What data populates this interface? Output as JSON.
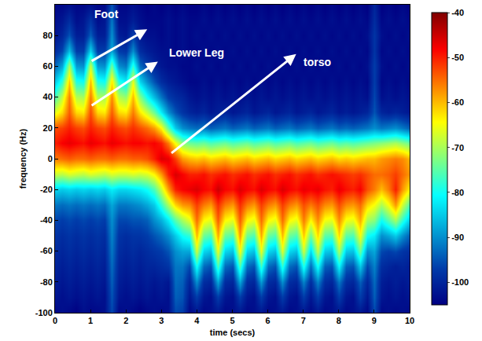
{
  "chart_data": {
    "type": "heatmap",
    "xlabel": "time (secs)",
    "ylabel": "frequency (Hz)",
    "xlim": [
      0,
      10
    ],
    "xticks": [
      0,
      1,
      2,
      3,
      4,
      5,
      6,
      7,
      8,
      9,
      10
    ],
    "ylim": [
      -100,
      100
    ],
    "yticks": [
      -100,
      -80,
      -60,
      -40,
      -20,
      0,
      20,
      40,
      60,
      80
    ],
    "grid": false,
    "zlim": [
      -105,
      -40
    ],
    "zticks": [
      -40,
      -50,
      -60,
      -70,
      -80,
      -90,
      -100
    ],
    "x": [
      0,
      0.2,
      0.4,
      0.6,
      0.8,
      1,
      1.2,
      1.4,
      1.6,
      1.8,
      2,
      2.2,
      2.4,
      2.6,
      2.8,
      3,
      3.2,
      3.4,
      3.6,
      3.8,
      4,
      4.2,
      4.4,
      4.6,
      4.8,
      5,
      5.2,
      5.4,
      5.6,
      5.8,
      6,
      6.2,
      6.4,
      6.6,
      6.8,
      7,
      7.2,
      7.4,
      7.6,
      7.8,
      8,
      8.2,
      8.4,
      8.6,
      8.8,
      9,
      9.2,
      9.4,
      9.6,
      9.8,
      10
    ],
    "y": [
      -100,
      -90,
      -80,
      -70,
      -60,
      -50,
      -40,
      -30,
      -20,
      -10,
      0,
      10,
      20,
      30,
      40,
      50,
      60,
      70,
      80,
      90,
      100
    ],
    "z": [
      [
        -104,
        -103,
        -104,
        -105,
        -103,
        -104,
        -104,
        -103,
        -96,
        -104,
        -103,
        -104,
        -105,
        -104,
        -103,
        -104,
        -103,
        -96,
        -97,
        -104,
        -102,
        -104,
        -103,
        -102,
        -104,
        -103,
        -102,
        -104,
        -103,
        -102,
        -104,
        -103,
        -102,
        -104,
        -103,
        -102,
        -104,
        -102,
        -104,
        -103,
        -102,
        -104,
        -103,
        -102,
        -104,
        -96,
        -104,
        -103,
        -104,
        -103,
        -104
      ],
      [
        -102,
        -103,
        -102,
        -103,
        -102,
        -103,
        -102,
        -103,
        -95,
        -102,
        -103,
        -102,
        -103,
        -102,
        -103,
        -102,
        -103,
        -94,
        -95,
        -102,
        -97,
        -102,
        -103,
        -97,
        -102,
        -103,
        -97,
        -102,
        -103,
        -97,
        -102,
        -103,
        -97,
        -102,
        -103,
        -97,
        -102,
        -97,
        -102,
        -103,
        -97,
        -102,
        -103,
        -97,
        -102,
        -94,
        -102,
        -103,
        -102,
        -103,
        -102
      ],
      [
        -101,
        -102,
        -101,
        -102,
        -101,
        -102,
        -101,
        -102,
        -94,
        -101,
        -102,
        -101,
        -102,
        -101,
        -102,
        -101,
        -102,
        -93,
        -94,
        -100,
        -90,
        -99,
        -100,
        -88,
        -99,
        -100,
        -88,
        -99,
        -100,
        -89,
        -99,
        -100,
        -90,
        -99,
        -100,
        -91,
        -99,
        -91,
        -99,
        -100,
        -92,
        -99,
        -100,
        -94,
        -100,
        -93,
        -101,
        -102,
        -101,
        -102,
        -101
      ],
      [
        -100,
        -101,
        -100,
        -101,
        -100,
        -101,
        -100,
        -101,
        -93,
        -100,
        -101,
        -100,
        -101,
        -100,
        -100,
        -99,
        -98,
        -92,
        -92,
        -96,
        -80,
        -93,
        -95,
        -76,
        -93,
        -95,
        -76,
        -93,
        -95,
        -77,
        -93,
        -95,
        -78,
        -93,
        -95,
        -79,
        -93,
        -80,
        -94,
        -95,
        -81,
        -94,
        -95,
        -85,
        -96,
        -91,
        -99,
        -100,
        -101,
        -100,
        -101
      ],
      [
        -99,
        -100,
        -99,
        -100,
        -99,
        -100,
        -99,
        -100,
        -92,
        -99,
        -100,
        -99,
        -100,
        -99,
        -98,
        -97,
        -95,
        -90,
        -88,
        -88,
        -68,
        -84,
        -86,
        -66,
        -84,
        -86,
        -65,
        -84,
        -86,
        -66,
        -84,
        -86,
        -67,
        -84,
        -86,
        -68,
        -84,
        -69,
        -85,
        -86,
        -70,
        -85,
        -86,
        -74,
        -90,
        -88,
        -96,
        -97,
        -96,
        -98,
        -99
      ],
      [
        -98,
        -99,
        -98,
        -99,
        -98,
        -99,
        -98,
        -99,
        -91,
        -98,
        -99,
        -98,
        -98,
        -97,
        -95,
        -93,
        -90,
        -85,
        -80,
        -78,
        -60,
        -74,
        -76,
        -59,
        -74,
        -76,
        -58,
        -74,
        -76,
        -59,
        -74,
        -76,
        -60,
        -74,
        -76,
        -61,
        -74,
        -62,
        -75,
        -76,
        -62,
        -75,
        -76,
        -65,
        -80,
        -82,
        -90,
        -88,
        -85,
        -90,
        -94
      ],
      [
        -96,
        -97,
        -96,
        -97,
        -96,
        -97,
        -96,
        -97,
        -90,
        -96,
        -96,
        -95,
        -95,
        -94,
        -90,
        -87,
        -82,
        -75,
        -70,
        -66,
        -55,
        -64,
        -66,
        -54,
        -64,
        -66,
        -54,
        -64,
        -66,
        -55,
        -64,
        -66,
        -55,
        -64,
        -66,
        -56,
        -64,
        -57,
        -65,
        -66,
        -57,
        -65,
        -66,
        -59,
        -70,
        -72,
        -80,
        -75,
        -70,
        -78,
        -85
      ],
      [
        -92,
        -93,
        -92,
        -93,
        -92,
        -93,
        -92,
        -93,
        -88,
        -92,
        -92,
        -91,
        -90,
        -88,
        -85,
        -78,
        -70,
        -62,
        -58,
        -57,
        -52,
        -56,
        -58,
        -51,
        -56,
        -58,
        -51,
        -56,
        -58,
        -52,
        -56,
        -58,
        -52,
        -56,
        -58,
        -53,
        -56,
        -53,
        -57,
        -58,
        -53,
        -57,
        -58,
        -55,
        -62,
        -65,
        -70,
        -65,
        -58,
        -68,
        -76
      ],
      [
        -84,
        -85,
        -84,
        -85,
        -84,
        -85,
        -84,
        -85,
        -82,
        -84,
        -84,
        -83,
        -82,
        -80,
        -76,
        -68,
        -58,
        -50,
        -48,
        -47,
        -46,
        -48,
        -49,
        -45,
        -48,
        -49,
        -46,
        -48,
        -49,
        -46,
        -48,
        -49,
        -46,
        -48,
        -49,
        -47,
        -48,
        -47,
        -49,
        -50,
        -47,
        -49,
        -50,
        -48,
        -53,
        -56,
        -60,
        -56,
        -50,
        -58,
        -64
      ],
      [
        -68,
        -69,
        -67,
        -68,
        -69,
        -67,
        -68,
        -69,
        -67,
        -68,
        -68,
        -67,
        -68,
        -67,
        -64,
        -58,
        -50,
        -46,
        -48,
        -50,
        -50,
        -49,
        -51,
        -50,
        -49,
        -51,
        -50,
        -49,
        -51,
        -50,
        -49,
        -51,
        -50,
        -49,
        -51,
        -50,
        -49,
        -51,
        -50,
        -49,
        -50,
        -51,
        -52,
        -51,
        -53,
        -55,
        -55,
        -54,
        -52,
        -55,
        -58
      ],
      [
        -56,
        -55,
        -54,
        -55,
        -55,
        -54,
        -55,
        -55,
        -54,
        -55,
        -55,
        -54,
        -54,
        -53,
        -50,
        -46,
        -47,
        -52,
        -58,
        -60,
        -61,
        -60,
        -62,
        -61,
        -60,
        -62,
        -61,
        -60,
        -62,
        -61,
        -60,
        -62,
        -61,
        -60,
        -62,
        -61,
        -60,
        -62,
        -61,
        -60,
        -62,
        -61,
        -62,
        -61,
        -60,
        -60,
        -58,
        -57,
        -56,
        -57,
        -60
      ],
      [
        -50,
        -48,
        -47,
        -48,
        -49,
        -47,
        -48,
        -49,
        -47,
        -48,
        -49,
        -48,
        -48,
        -49,
        -48,
        -50,
        -56,
        -65,
        -72,
        -74,
        -75,
        -74,
        -76,
        -75,
        -74,
        -76,
        -75,
        -74,
        -76,
        -75,
        -74,
        -76,
        -75,
        -74,
        -76,
        -75,
        -74,
        -76,
        -75,
        -74,
        -76,
        -75,
        -76,
        -75,
        -74,
        -73,
        -72,
        -71,
        -70,
        -72,
        -74
      ],
      [
        -53,
        -52,
        -50,
        -52,
        -53,
        -50,
        -52,
        -53,
        -50,
        -52,
        -53,
        -51,
        -53,
        -55,
        -58,
        -64,
        -75,
        -85,
        -90,
        -92,
        -93,
        -92,
        -94,
        -93,
        -92,
        -94,
        -93,
        -92,
        -94,
        -93,
        -92,
        -94,
        -93,
        -92,
        -94,
        -93,
        -92,
        -94,
        -93,
        -92,
        -94,
        -93,
        -94,
        -93,
        -92,
        -90,
        -92,
        -91,
        -90,
        -92,
        -94
      ],
      [
        -66,
        -62,
        -54,
        -62,
        -63,
        -53,
        -62,
        -63,
        -54,
        -62,
        -63,
        -56,
        -63,
        -68,
        -74,
        -82,
        -90,
        -95,
        -98,
        -100,
        -101,
        -100,
        -102,
        -101,
        -100,
        -102,
        -101,
        -100,
        -102,
        -101,
        -100,
        -102,
        -101,
        -100,
        -102,
        -101,
        -100,
        -102,
        -101,
        -100,
        -102,
        -101,
        -102,
        -101,
        -100,
        -95,
        -100,
        -101,
        -100,
        -101,
        -102
      ],
      [
        -76,
        -68,
        -56,
        -69,
        -70,
        -56,
        -69,
        -70,
        -57,
        -69,
        -71,
        -60,
        -72,
        -80,
        -86,
        -92,
        -97,
        -99,
        -100,
        -102,
        -103,
        -102,
        -103,
        -102,
        -103,
        -102,
        -103,
        -102,
        -103,
        -102,
        -103,
        -102,
        -103,
        -102,
        -103,
        -102,
        -103,
        -102,
        -103,
        -102,
        -103,
        -102,
        -103,
        -102,
        -103,
        -96,
        -103,
        -102,
        -103,
        -102,
        -103
      ],
      [
        -85,
        -78,
        -61,
        -79,
        -80,
        -60,
        -79,
        -80,
        -63,
        -79,
        -82,
        -66,
        -84,
        -90,
        -95,
        -99,
        -101,
        -102,
        -103,
        -104,
        -104,
        -103,
        -104,
        -103,
        -104,
        -103,
        -104,
        -103,
        -104,
        -103,
        -104,
        -103,
        -104,
        -103,
        -104,
        -103,
        -104,
        -103,
        -104,
        -103,
        -104,
        -103,
        -104,
        -103,
        -104,
        -97,
        -104,
        -103,
        -104,
        -103,
        -104
      ],
      [
        -93,
        -88,
        -70,
        -89,
        -90,
        -68,
        -89,
        -90,
        -74,
        -90,
        -92,
        -78,
        -93,
        -97,
        -100,
        -102,
        -103,
        -103,
        -104,
        -104,
        -103,
        -104,
        -103,
        -104,
        -103,
        -104,
        -103,
        -104,
        -103,
        -104,
        -103,
        -104,
        -103,
        -104,
        -103,
        -104,
        -103,
        -104,
        -103,
        -104,
        -103,
        -104,
        -103,
        -104,
        -103,
        -97,
        -103,
        -104,
        -103,
        -104,
        -103
      ],
      [
        -99,
        -96,
        -86,
        -97,
        -97,
        -84,
        -97,
        -97,
        -88,
        -97,
        -98,
        -90,
        -99,
        -101,
        -102,
        -103,
        -103,
        -104,
        -103,
        -104,
        -104,
        -103,
        -104,
        -103,
        -104,
        -103,
        -104,
        -103,
        -104,
        -103,
        -104,
        -103,
        -104,
        -103,
        -104,
        -103,
        -104,
        -103,
        -104,
        -103,
        -104,
        -103,
        -104,
        -103,
        -104,
        -98,
        -104,
        -103,
        -104,
        -103,
        -104
      ],
      [
        -102,
        -100,
        -95,
        -101,
        -101,
        -94,
        -101,
        -101,
        -90,
        -101,
        -102,
        -97,
        -102,
        -103,
        -103,
        -104,
        -103,
        -104,
        -103,
        -104,
        -103,
        -104,
        -103,
        -104,
        -103,
        -104,
        -103,
        -104,
        -103,
        -104,
        -103,
        -104,
        -103,
        -104,
        -103,
        -104,
        -103,
        -104,
        -103,
        -104,
        -103,
        -104,
        -103,
        -104,
        -103,
        -98,
        -103,
        -104,
        -103,
        -104,
        -103
      ],
      [
        -103,
        -102,
        -99,
        -103,
        -102,
        -98,
        -103,
        -102,
        -92,
        -103,
        -103,
        -101,
        -103,
        -104,
        -104,
        -104,
        -103,
        -104,
        -103,
        -104,
        -104,
        -103,
        -104,
        -103,
        -104,
        -103,
        -104,
        -103,
        -104,
        -103,
        -104,
        -103,
        -104,
        -103,
        -104,
        -103,
        -104,
        -103,
        -104,
        -103,
        -104,
        -103,
        -104,
        -103,
        -104,
        -99,
        -104,
        -103,
        -104,
        -103,
        -104
      ],
      [
        -104,
        -104,
        -103,
        -104,
        -104,
        -103,
        -104,
        -104,
        -95,
        -104,
        -104,
        -103,
        -104,
        -105,
        -104,
        -105,
        -104,
        -105,
        -104,
        -105,
        -105,
        -104,
        -105,
        -104,
        -105,
        -104,
        -105,
        -104,
        -105,
        -104,
        -105,
        -104,
        -105,
        -104,
        -105,
        -104,
        -105,
        -104,
        -105,
        -104,
        -105,
        -104,
        -105,
        -104,
        -105,
        -100,
        -105,
        -104,
        -105,
        -104,
        -105
      ]
    ],
    "annotations": [
      {
        "text": "Foot",
        "x": 1.45,
        "y": 94,
        "arrow_from": [
          1.0,
          63
        ],
        "arrow_to": [
          2.6,
          84
        ]
      },
      {
        "text": "Lower Leg",
        "x": 4.0,
        "y": 69,
        "arrow_from": [
          1.0,
          34
        ],
        "arrow_to": [
          2.9,
          63
        ]
      },
      {
        "text": "torso",
        "x": 7.4,
        "y": 63,
        "arrow_from": [
          3.25,
          3
        ],
        "arrow_to": [
          6.8,
          68
        ]
      }
    ]
  }
}
